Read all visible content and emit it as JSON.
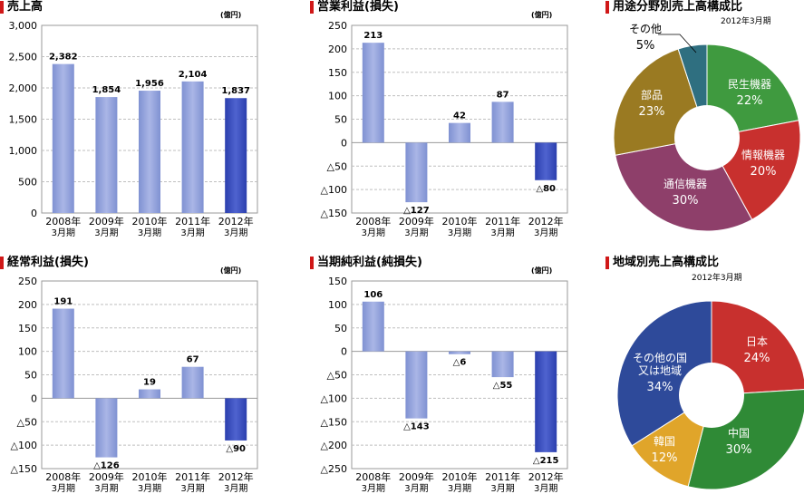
{
  "colors": {
    "bar_light": "#8b9bd8",
    "bar_highlight": "#3347b8",
    "grid": "#bfbfbf",
    "title_marker": "#d01818"
  },
  "categories": [
    "2008年\n3月期",
    "2009年\n3月期",
    "2010年\n3月期",
    "2011年\n3月期",
    "2012年\n3月期"
  ],
  "chart_data": [
    {
      "type": "bar",
      "title": "売上高",
      "unit": "(億円)",
      "values": [
        2382,
        1854,
        1956,
        2104,
        1837
      ],
      "value_labels": [
        "2,382",
        "1,854",
        "1,956",
        "2,104",
        "1,837"
      ],
      "yticks": [
        3000,
        2500,
        2000,
        1500,
        1000,
        500,
        0
      ],
      "ytick_labels": [
        "3,000",
        "2,500",
        "2,000",
        "1,500",
        "1,000",
        "500",
        "0"
      ],
      "ylim": [
        0,
        3000
      ],
      "grid": true
    },
    {
      "type": "bar",
      "title": "営業利益(損失)",
      "unit": "(億円)",
      "values": [
        213,
        -127,
        42,
        87,
        -80
      ],
      "value_labels": [
        "213",
        "△127",
        "42",
        "87",
        "△80"
      ],
      "yticks": [
        250,
        200,
        150,
        100,
        50,
        0,
        -50,
        -100,
        -150
      ],
      "ytick_labels": [
        "250",
        "200",
        "150",
        "100",
        "50",
        "0",
        "△50",
        "△100",
        "△150"
      ],
      "ylim": [
        -150,
        250
      ],
      "grid": true
    },
    {
      "type": "pie",
      "title": "用途分野別売上高構成比",
      "subtitle": "2012年3月期",
      "slices": [
        {
          "label": "民生機器",
          "value": 22,
          "value_label": "22%",
          "color": "#3f9a3f"
        },
        {
          "label": "情報機器",
          "value": 20,
          "value_label": "20%",
          "color": "#c8302e"
        },
        {
          "label": "通信機器",
          "value": 30,
          "value_label": "30%",
          "color": "#8e3f6a"
        },
        {
          "label": "部品",
          "value": 23,
          "value_label": "23%",
          "color": "#9a7a22"
        },
        {
          "label": "その他",
          "value": 5,
          "value_label": "5%",
          "color": "#2f6f80"
        }
      ]
    },
    {
      "type": "bar",
      "title": "経常利益(損失)",
      "unit": "(億円)",
      "values": [
        191,
        -126,
        19,
        67,
        -90
      ],
      "value_labels": [
        "191",
        "△126",
        "19",
        "67",
        "△90"
      ],
      "yticks": [
        250,
        200,
        150,
        100,
        50,
        0,
        -50,
        -100,
        -150
      ],
      "ytick_labels": [
        "250",
        "200",
        "150",
        "100",
        "50",
        "0",
        "△50",
        "△100",
        "△150"
      ],
      "ylim": [
        -150,
        250
      ],
      "grid": true
    },
    {
      "type": "bar",
      "title": "当期純利益(純損失)",
      "unit": "(億円)",
      "values": [
        106,
        -143,
        -6,
        -55,
        -215
      ],
      "value_labels": [
        "106",
        "△143",
        "△6",
        "△55",
        "△215"
      ],
      "yticks": [
        150,
        100,
        50,
        0,
        -50,
        -100,
        -150,
        -200,
        -250
      ],
      "ytick_labels": [
        "150",
        "100",
        "50",
        "0",
        "△50",
        "△100",
        "△150",
        "△200",
        "△250"
      ],
      "ylim": [
        -250,
        150
      ],
      "grid": true
    },
    {
      "type": "pie",
      "title": "地域別売上高構成比",
      "subtitle": "2012年3月期",
      "slices": [
        {
          "label": "日本",
          "value": 24,
          "value_label": "24%",
          "color": "#c8302e"
        },
        {
          "label": "中国",
          "value": 30,
          "value_label": "30%",
          "color": "#2f8a36"
        },
        {
          "label": "韓国",
          "value": 12,
          "value_label": "12%",
          "color": "#e0a52a"
        },
        {
          "label": "その他の国\n又は地域",
          "value": 34,
          "value_label": "34%",
          "color": "#2e4a9a"
        }
      ]
    }
  ]
}
